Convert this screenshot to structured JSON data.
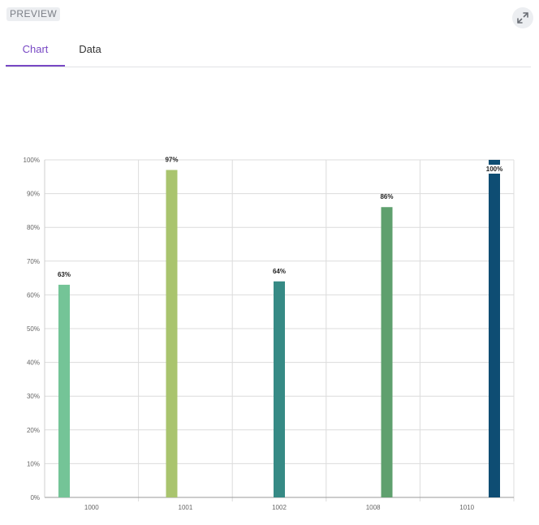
{
  "header": {
    "badge": "PREVIEW"
  },
  "tabs": [
    {
      "label": "Chart",
      "active": true
    },
    {
      "label": "Data",
      "active": false
    }
  ],
  "icons": {
    "expand": "expand-icon"
  },
  "colors": {
    "accent": "#7848c4",
    "badge_bg": "#eceef1"
  },
  "chart_data": {
    "type": "bar",
    "categories": [
      "1000",
      "1001",
      "1002",
      "1008",
      "1010"
    ],
    "values": [
      63,
      97,
      64,
      86,
      100
    ],
    "value_labels": [
      "63%",
      "97%",
      "64%",
      "86%",
      "100%"
    ],
    "bar_colors": [
      "#74c497",
      "#a9c46e",
      "#368a85",
      "#5fa06e",
      "#0e4d73"
    ],
    "ylim": [
      0,
      100
    ],
    "y_ticks": [
      "0%",
      "10%",
      "20%",
      "30%",
      "40%",
      "50%",
      "60%",
      "70%",
      "80%",
      "90%",
      "100%"
    ],
    "grid": true,
    "legend": "none"
  }
}
